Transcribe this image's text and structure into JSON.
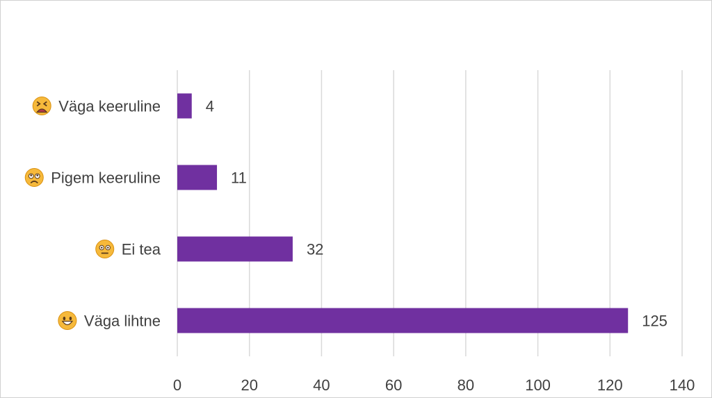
{
  "chart_data": {
    "type": "bar",
    "orientation": "horizontal",
    "categories": [
      "Väga lihtne",
      "Ei tea",
      "Pigem keeruline",
      "Väga keeruline"
    ],
    "category_icons": [
      "grinning-face-icon",
      "neutral-face-icon",
      "worried-face-icon",
      "tired-face-icon"
    ],
    "values": [
      125,
      32,
      11,
      4
    ],
    "xlim": [
      0,
      140
    ],
    "xticks": [
      0,
      20,
      40,
      60,
      80,
      100,
      120,
      140
    ],
    "grid": true,
    "legend": "none",
    "title": "",
    "xlabel": "",
    "ylabel": "",
    "bar_color": "#7030A0",
    "gridline_color": "#d9d9d9"
  }
}
